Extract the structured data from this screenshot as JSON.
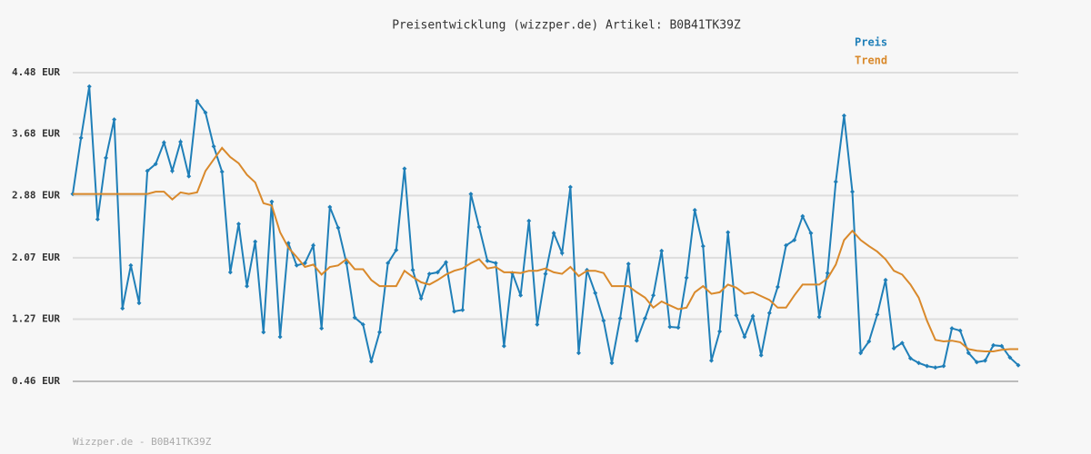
{
  "chart_data": {
    "type": "line",
    "title": "Preisentwicklung (wizzper.de) Artikel: B0B41TK39Z",
    "ylim": [
      0.46,
      4.48
    ],
    "yticks": [
      {
        "value": 0.46,
        "label": "0.46 EUR"
      },
      {
        "value": 1.27,
        "label": "1.27 EUR"
      },
      {
        "value": 2.07,
        "label": "2.07 EUR"
      },
      {
        "value": 2.88,
        "label": "2.88 EUR"
      },
      {
        "value": 3.68,
        "label": "3.68 EUR"
      },
      {
        "value": 4.48,
        "label": "4.48 EUR"
      }
    ],
    "grid": true,
    "legend": "top-right",
    "series": [
      {
        "name": "Preis",
        "color": "#1f7fb8",
        "markers": true,
        "values": [
          2.9,
          3.63,
          4.3,
          2.57,
          3.37,
          3.87,
          1.41,
          1.97,
          1.48,
          3.2,
          3.29,
          3.57,
          3.2,
          3.58,
          3.13,
          4.11,
          3.96,
          3.52,
          3.19,
          1.88,
          2.51,
          1.7,
          2.28,
          1.1,
          2.8,
          1.04,
          2.26,
          1.97,
          2.0,
          2.23,
          1.15,
          2.73,
          2.46,
          2.0,
          1.29,
          1.2,
          0.72,
          1.1,
          2.0,
          2.17,
          3.23,
          1.91,
          1.54,
          1.86,
          1.88,
          2.01,
          1.37,
          1.39,
          2.9,
          2.47,
          2.03,
          2.0,
          0.92,
          1.87,
          1.58,
          2.55,
          1.2,
          1.86,
          2.39,
          2.13,
          2.99,
          0.83,
          1.91,
          1.61,
          1.25,
          0.7,
          1.28,
          1.99,
          0.99,
          1.28,
          1.58,
          2.16,
          1.17,
          1.16,
          1.81,
          2.69,
          2.22,
          0.73,
          1.11,
          2.4,
          1.32,
          1.04,
          1.31,
          0.8,
          1.35,
          1.69,
          2.23,
          2.3,
          2.61,
          2.39,
          1.3,
          1.87,
          3.06,
          3.92,
          2.93,
          0.83,
          0.98,
          1.33,
          1.78,
          0.89,
          0.96,
          0.76,
          0.7,
          0.66,
          0.64,
          0.66,
          1.15,
          1.12,
          0.83,
          0.71,
          0.73,
          0.93,
          0.92,
          0.77,
          0.67
        ]
      },
      {
        "name": "Trend",
        "color": "#d9892b",
        "markers": false,
        "values": [
          2.9,
          2.9,
          2.9,
          2.9,
          2.9,
          2.9,
          2.9,
          2.9,
          2.9,
          2.9,
          2.93,
          2.93,
          2.83,
          2.92,
          2.9,
          2.92,
          3.2,
          3.35,
          3.5,
          3.38,
          3.3,
          3.15,
          3.05,
          2.78,
          2.75,
          2.4,
          2.2,
          2.08,
          1.95,
          1.98,
          1.85,
          1.95,
          1.97,
          2.05,
          1.92,
          1.92,
          1.78,
          1.7,
          1.7,
          1.7,
          1.9,
          1.82,
          1.75,
          1.72,
          1.78,
          1.85,
          1.9,
          1.93,
          2.0,
          2.05,
          1.93,
          1.95,
          1.88,
          1.88,
          1.87,
          1.9,
          1.9,
          1.93,
          1.88,
          1.86,
          1.95,
          1.83,
          1.9,
          1.9,
          1.87,
          1.7,
          1.7,
          1.7,
          1.62,
          1.55,
          1.42,
          1.5,
          1.45,
          1.4,
          1.42,
          1.62,
          1.7,
          1.6,
          1.62,
          1.72,
          1.68,
          1.6,
          1.62,
          1.57,
          1.52,
          1.42,
          1.42,
          1.58,
          1.72,
          1.72,
          1.72,
          1.8,
          1.98,
          2.3,
          2.42,
          2.3,
          2.22,
          2.15,
          2.05,
          1.9,
          1.85,
          1.72,
          1.55,
          1.25,
          1.0,
          0.98,
          0.99,
          0.97,
          0.88,
          0.86,
          0.85,
          0.85,
          0.87,
          0.88,
          0.88
        ]
      }
    ]
  },
  "footer": "Wizzper.de - B0B41TK39Z"
}
